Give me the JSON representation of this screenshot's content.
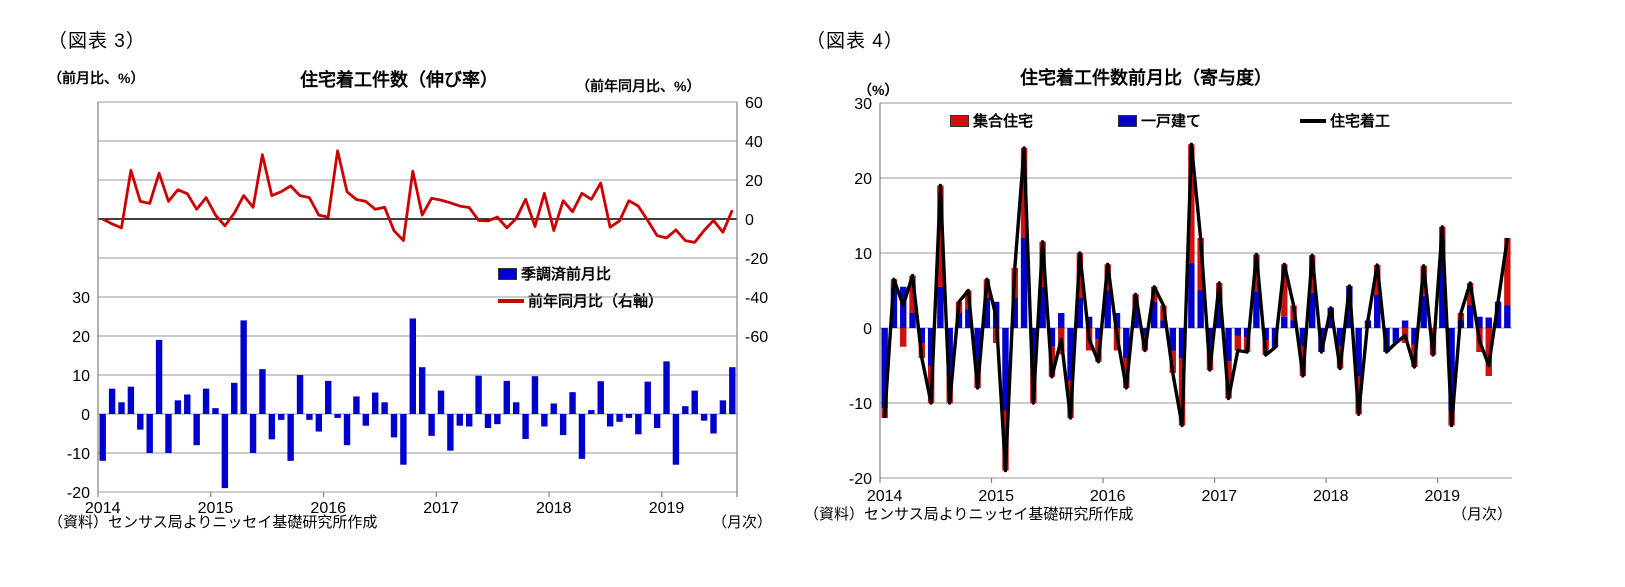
{
  "colors": {
    "bar_blue": "#0000CC",
    "bar_red": "#CC1111",
    "line_red": "#CC0000",
    "line_black": "#000000",
    "grid": "#999999",
    "axis": "#808080"
  },
  "fig3": {
    "label": "（図表 3）",
    "title": "住宅着工件数（伸び率）",
    "unit_left": "（前月比、%）",
    "unit_right": "（前年同月比、%）",
    "legend_bar": "季調済前月比",
    "legend_line": "前年同月比（右軸）",
    "source": "（資料）センサス局よりニッセイ基礎研究所作成",
    "freq": "（月次）",
    "chart_data": {
      "type": "bar+line",
      "title": "住宅着工件数（伸び率）",
      "x_start": "2014-01",
      "x_end": "2019-08",
      "x_tick_labels": [
        "2014",
        "2015",
        "2016",
        "2017",
        "2018",
        "2019"
      ],
      "left_axis": {
        "label": "前月比、%",
        "min": -20,
        "max": 80,
        "tick_labels": [
          30,
          20,
          10,
          0,
          -10,
          -20
        ]
      },
      "right_axis": {
        "label": "前年同月比、%",
        "min": -140,
        "max": 60,
        "tick_labels": [
          60,
          40,
          20,
          0,
          -20,
          -40,
          -60
        ]
      },
      "grid": true,
      "series": [
        {
          "name": "季調済前月比",
          "type": "bar",
          "axis": "left",
          "values": [
            -12,
            6.5,
            3,
            7,
            -4,
            -10,
            19,
            -10,
            3.5,
            5,
            -8,
            6.5,
            1.5,
            -19,
            8,
            24,
            -10,
            11.5,
            -6.5,
            -1.5,
            -12,
            10,
            -1.5,
            -4.5,
            8.5,
            -1,
            -8,
            4.5,
            -3,
            5.5,
            3,
            -6,
            -13,
            24.5,
            12,
            -5.6,
            6,
            -9.4,
            -3,
            -3.2,
            9.8,
            -3.6,
            -2.6,
            8.5,
            3,
            -6.4,
            9.7,
            -3.2,
            2.7,
            -5.4,
            5.6,
            -11.5,
            1,
            8.4,
            -3.2,
            -2,
            -1,
            -5.2,
            8.3,
            -3.6,
            13.5,
            -13,
            2,
            6,
            -1.7,
            -5,
            3.5,
            12
          ]
        },
        {
          "name": "前年同月比（右軸）",
          "type": "line",
          "axis": "right",
          "values": [
            0,
            -2.5,
            -4.5,
            25,
            9,
            8,
            23.5,
            9,
            15,
            13,
            5,
            11,
            2,
            -3.5,
            3,
            12,
            6,
            33,
            12,
            14,
            17,
            12,
            11,
            2,
            1,
            35,
            14,
            10,
            9,
            5,
            6,
            -6,
            -11,
            24.5,
            2,
            10.6,
            9.7,
            8.3,
            6.6,
            5.9,
            -0.7,
            -1,
            1,
            -4.5,
            0.2,
            10.1,
            -3.8,
            13.2,
            -5.9,
            9.4,
            3.7,
            13.2,
            10.1,
            18.4,
            -4.2,
            -1,
            9.4,
            6.6,
            -0.7,
            -8.5,
            -9.7,
            -5.6,
            -11.1,
            -12,
            -5.9,
            -0.7,
            -6.8,
            4.5
          ]
        }
      ]
    }
  },
  "fig4": {
    "label": "（図表 4）",
    "title": "住宅着工件数前月比（寄与度）",
    "unit": "（%）",
    "legend_multi": "集合住宅",
    "legend_single": "一戸建て",
    "legend_total": "住宅着工",
    "source": "（資料）センサス局よりニッセイ基礎研究所作成",
    "freq": "（月次）",
    "chart_data": {
      "type": "stacked-bar+line",
      "title": "住宅着工件数前月比（寄与度）",
      "x_start": "2014-01",
      "x_end": "2019-08",
      "x_tick_labels": [
        "2014",
        "2015",
        "2016",
        "2017",
        "2018",
        "2019"
      ],
      "y_axis": {
        "label": "%",
        "min": -20,
        "max": 30,
        "tick_labels": [
          30,
          20,
          10,
          0,
          -10,
          -20
        ]
      },
      "grid": true,
      "series": [
        {
          "name": "一戸建て",
          "type": "bar",
          "color_key": "bar_blue",
          "values": [
            -10.7,
            5.5,
            5.5,
            2,
            -2,
            -5,
            5.5,
            -6,
            2,
            2.5,
            -5,
            4,
            3.5,
            -11,
            4,
            12,
            -4,
            5.5,
            -2.5,
            2,
            -7,
            4,
            1.5,
            -1.5,
            5,
            2,
            -4,
            2.5,
            -1,
            3.5,
            1,
            -3,
            -4,
            8.6,
            5,
            -2.6,
            4,
            -4.4,
            -1,
            -1.2,
            4.8,
            -1.6,
            -2.6,
            1.5,
            1,
            -2.4,
            4.7,
            -3.2,
            2.7,
            -2.4,
            5.6,
            -6.5,
            1,
            4.4,
            -3.2,
            -2,
            1,
            -2.2,
            4.3,
            0,
            9.5,
            -11,
            1,
            3,
            1.5,
            1.4,
            3.5,
            3
          ]
        },
        {
          "name": "集合住宅",
          "type": "bar",
          "color_key": "bar_red",
          "values": [
            -1.3,
            1,
            -2.5,
            5,
            -2,
            -5,
            13.5,
            -4,
            1.5,
            2.5,
            -3,
            2.5,
            -2,
            -8,
            4,
            12,
            -6,
            6,
            -4,
            -3.5,
            -5,
            6,
            -3,
            -3,
            3.5,
            -3,
            -4,
            2,
            -2,
            2,
            2,
            -3,
            -9,
            15.9,
            7,
            -3,
            2,
            -5,
            -2,
            -2,
            5,
            -2,
            0,
            7,
            2,
            -4,
            5,
            0,
            0,
            -3,
            0,
            -5,
            0,
            4,
            0,
            0,
            -2,
            -3,
            4,
            -3.6,
            4,
            -2,
            1,
            3,
            -3.2,
            -6.4,
            0,
            9
          ]
        },
        {
          "name": "住宅着工",
          "type": "line",
          "color_key": "line_black",
          "values": [
            -12,
            6.5,
            3,
            7,
            -4,
            -10,
            19,
            -10,
            3.5,
            5,
            -8,
            6.5,
            1.5,
            -19,
            8,
            24,
            -10,
            11.5,
            -6.5,
            -1.5,
            -12,
            10,
            -1.5,
            -4.5,
            8.5,
            -1,
            -8,
            4.5,
            -3,
            5.5,
            3,
            -6,
            -13,
            24.5,
            12,
            -5.6,
            6,
            -9.4,
            -3,
            -3.2,
            9.8,
            -3.6,
            -2.6,
            8.5,
            3,
            -6.4,
            9.7,
            -3.2,
            2.7,
            -5.4,
            5.6,
            -11.5,
            1,
            8.4,
            -3.2,
            -2,
            -1,
            -5.2,
            8.3,
            -3.6,
            13.5,
            -13,
            2,
            6,
            -1.7,
            -5,
            3.5,
            12
          ]
        }
      ]
    }
  }
}
